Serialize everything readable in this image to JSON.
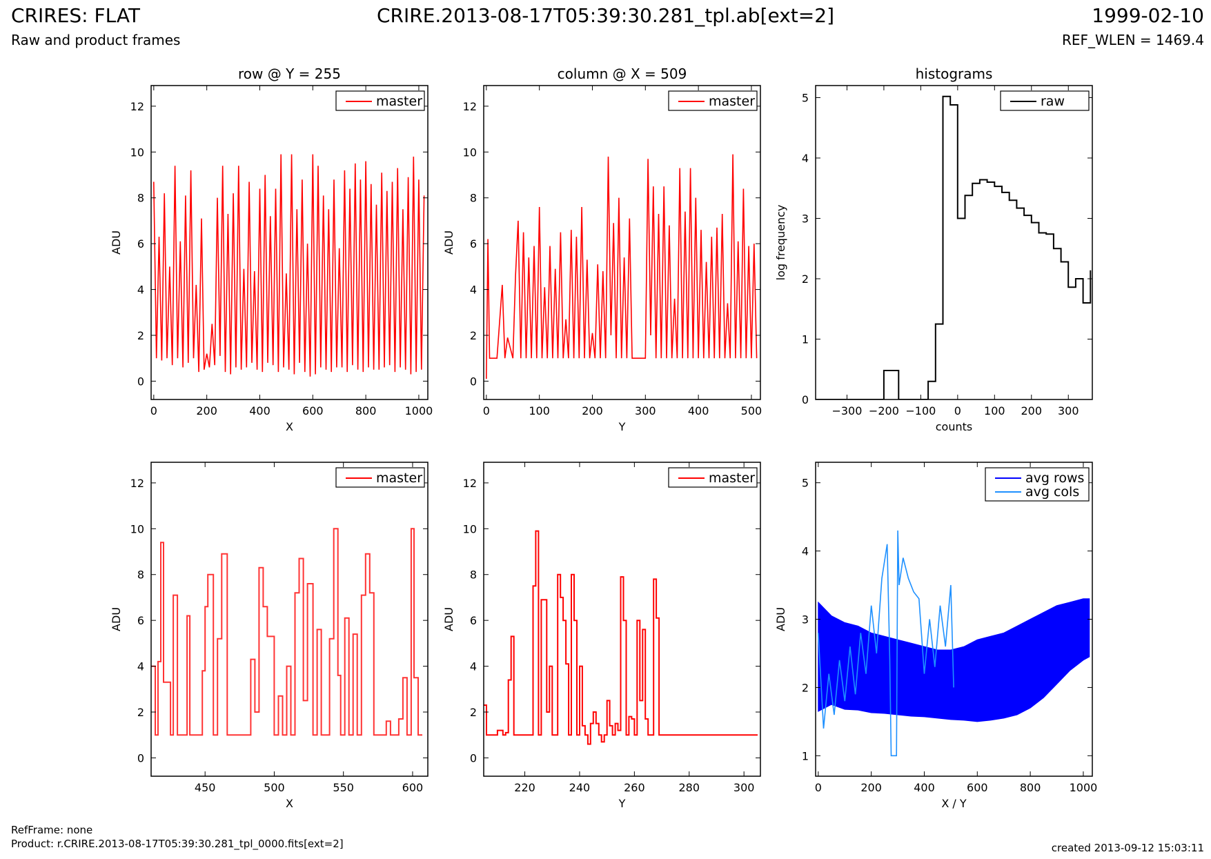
{
  "header": {
    "title": "CRIRES: FLAT",
    "subtitle": "Raw and product frames",
    "file": "CRIRE.2013-08-17T05:39:30.281_tpl.ab[ext=2]",
    "date": "1999-02-10",
    "ref_wlen": "REF_WLEN = 1469.4"
  },
  "footer": {
    "ref_frame": "RefFrame: none",
    "product": "Product: r.CRIRE.2013-08-17T05:39:30.281_tpl_0000.fits[ext=2]",
    "created": "created 2013-09-12 15:03:11"
  },
  "colors": {
    "master": "#ff0000",
    "master_zoom": "#ff3333",
    "raw": "#000000",
    "avg_rows": "#0000ff",
    "avg_cols": "#1e90ff"
  },
  "chart_data": [
    {
      "id": "row",
      "type": "line",
      "title": "row @ Y = 255",
      "xlabel": "X",
      "ylabel": "ADU",
      "xlim": [
        -10,
        1034
      ],
      "ylim": [
        -0.8,
        12.9
      ],
      "xticks": [
        0,
        200,
        400,
        600,
        800,
        1000
      ],
      "yticks": [
        0,
        2,
        4,
        6,
        8,
        10,
        12
      ],
      "legend": [
        "master"
      ],
      "legend_position": "top-right",
      "series": [
        {
          "name": "master",
          "style": "line",
          "x": [
            0,
            10,
            20,
            30,
            40,
            50,
            60,
            70,
            80,
            90,
            100,
            110,
            120,
            130,
            140,
            150,
            160,
            170,
            180,
            190,
            200,
            210,
            220,
            230,
            240,
            250,
            260,
            270,
            280,
            290,
            300,
            310,
            320,
            330,
            340,
            350,
            360,
            370,
            380,
            390,
            400,
            410,
            420,
            430,
            440,
            450,
            460,
            470,
            480,
            490,
            500,
            510,
            520,
            530,
            540,
            550,
            560,
            570,
            580,
            590,
            600,
            610,
            620,
            630,
            640,
            650,
            660,
            670,
            680,
            690,
            700,
            710,
            720,
            730,
            740,
            750,
            760,
            770,
            780,
            790,
            800,
            810,
            820,
            830,
            840,
            850,
            860,
            870,
            880,
            890,
            900,
            910,
            920,
            930,
            940,
            950,
            960,
            970,
            980,
            990,
            1000,
            1010,
            1020
          ],
          "values": [
            8.7,
            1,
            6.3,
            0.9,
            8.2,
            1,
            5,
            0.7,
            9.4,
            1,
            6.1,
            0.6,
            8.1,
            0.8,
            9.2,
            1,
            4.2,
            0.4,
            7.1,
            0.5,
            1.2,
            0.6,
            2.5,
            0.7,
            8.0,
            1.1,
            9.4,
            0.4,
            7.3,
            0.3,
            8.2,
            0.6,
            9.4,
            0.5,
            4.9,
            0.6,
            8.7,
            0.8,
            4.8,
            0.5,
            8.4,
            0.4,
            9.0,
            0.8,
            7.2,
            0.7,
            8.4,
            0.4,
            9.9,
            0.6,
            4.7,
            0.5,
            9.9,
            0.3,
            7.5,
            0.8,
            8.8,
            0.4,
            6.0,
            0.2,
            9.9,
            0.3,
            9.4,
            0.6,
            8.1,
            0.5,
            7.5,
            0.4,
            8.8,
            0.6,
            5.8,
            0.6,
            9.2,
            0.4,
            8.4,
            0.7,
            9.5,
            0.5,
            8.8,
            0.4,
            9.6,
            0.6,
            8.6,
            0.5,
            7.7,
            0.5,
            9.1,
            0.6,
            8.3,
            0.7,
            8.7,
            0.4,
            9.3,
            0.6,
            7.5,
            0.5,
            8.9,
            0.3,
            9.8,
            0.4,
            8.8,
            0.5,
            8.1
          ]
        }
      ]
    },
    {
      "id": "column",
      "type": "line",
      "title": "column @ X = 509",
      "xlabel": "Y",
      "ylabel": "ADU",
      "xlim": [
        -5,
        517
      ],
      "ylim": [
        -0.8,
        12.9
      ],
      "xticks": [
        0,
        100,
        200,
        300,
        400,
        500
      ],
      "yticks": [
        0,
        2,
        4,
        6,
        8,
        10,
        12
      ],
      "legend": [
        "master"
      ],
      "legend_position": "top-right",
      "series": [
        {
          "name": "master",
          "style": "line",
          "x": [
            0,
            3,
            6,
            10,
            20,
            30,
            35,
            40,
            50,
            55,
            60,
            65,
            70,
            75,
            80,
            85,
            90,
            95,
            100,
            105,
            110,
            115,
            120,
            125,
            130,
            135,
            140,
            145,
            150,
            155,
            160,
            165,
            170,
            175,
            180,
            185,
            190,
            195,
            200,
            205,
            210,
            215,
            220,
            225,
            230,
            235,
            240,
            245,
            250,
            255,
            260,
            265,
            270,
            275,
            280,
            290,
            300,
            305,
            310,
            315,
            320,
            325,
            330,
            335,
            340,
            345,
            350,
            355,
            360,
            365,
            370,
            375,
            380,
            385,
            390,
            395,
            400,
            405,
            410,
            415,
            420,
            425,
            430,
            435,
            440,
            445,
            450,
            455,
            460,
            465,
            470,
            475,
            480,
            485,
            490,
            495,
            500,
            505,
            510
          ],
          "values": [
            0.1,
            6.2,
            1,
            1,
            1,
            4.2,
            1,
            1.9,
            1,
            4.6,
            7,
            1,
            6.5,
            1,
            5.4,
            1,
            5.9,
            1,
            7.6,
            1,
            4.1,
            1,
            5.9,
            1,
            4.9,
            1,
            6.5,
            1,
            2.7,
            1,
            6.6,
            1,
            6.3,
            1,
            7.6,
            1,
            5.3,
            1,
            2.1,
            1,
            5.1,
            1,
            4.8,
            1,
            9.8,
            2,
            6.9,
            1,
            8.0,
            1,
            5.4,
            1,
            7.1,
            1,
            1,
            1,
            1,
            9.7,
            2,
            8.5,
            1,
            7.3,
            1,
            8.5,
            1,
            6.8,
            1,
            3.6,
            1,
            9.3,
            1,
            7.4,
            1,
            9.3,
            1,
            8.0,
            1,
            6.6,
            1,
            5.2,
            1,
            6.3,
            1,
            6.7,
            1,
            7.3,
            1,
            3.4,
            1,
            9.9,
            1,
            6.1,
            1,
            8.4,
            1,
            5.9,
            1,
            6.0,
            1
          ]
        }
      ]
    },
    {
      "id": "hist",
      "type": "line",
      "title": "histograms",
      "xlabel": "counts",
      "ylabel": "log frequency",
      "xlim": [
        -385,
        365
      ],
      "ylim": [
        0,
        5.2
      ],
      "xticks": [
        -300,
        -200,
        -100,
        0,
        100,
        200,
        300
      ],
      "yticks": [
        0,
        1,
        2,
        3,
        4,
        5
      ],
      "legend": [
        "raw"
      ],
      "legend_position": "top-right",
      "series": [
        {
          "name": "raw",
          "style": "step",
          "x": [
            -385,
            -200,
            -160,
            -100,
            -80,
            -60,
            -40,
            -20,
            0,
            20,
            40,
            60,
            80,
            100,
            120,
            140,
            160,
            180,
            200,
            220,
            240,
            260,
            280,
            300,
            320,
            340,
            360
          ],
          "values": [
            0,
            0.48,
            0,
            0,
            0.3,
            1.25,
            5.02,
            4.88,
            3.0,
            3.38,
            3.58,
            3.64,
            3.6,
            3.53,
            3.43,
            3.3,
            3.17,
            3.05,
            2.93,
            2.76,
            2.74,
            2.5,
            2.28,
            1.86,
            2.0,
            1.6,
            2.14
          ]
        }
      ]
    },
    {
      "id": "row-zoom",
      "type": "line",
      "title": "",
      "xlabel": "X",
      "ylabel": "ADU",
      "xlim": [
        411,
        611
      ],
      "ylim": [
        -0.8,
        12.9
      ],
      "xticks": [
        450,
        500,
        550,
        600
      ],
      "yticks": [
        0,
        2,
        4,
        6,
        8,
        10,
        12
      ],
      "legend": [
        "master"
      ],
      "legend_position": "top-right",
      "series": [
        {
          "name": "master",
          "style": "step",
          "x": [
            411,
            414,
            416,
            418,
            420,
            425,
            427,
            430,
            437,
            439,
            445,
            448,
            450,
            452,
            456,
            459,
            462,
            466,
            470,
            480,
            483,
            486,
            489,
            492,
            495,
            500,
            503,
            506,
            509,
            512,
            515,
            518,
            521,
            524,
            528,
            531,
            534,
            537,
            540,
            543,
            546,
            548,
            551,
            554,
            557,
            560,
            563,
            566,
            569,
            572,
            575,
            578,
            581,
            584,
            587,
            590,
            593,
            596,
            599,
            601,
            604,
            607
          ],
          "values": [
            4,
            1,
            4.2,
            9.4,
            3.3,
            1,
            7.1,
            1,
            6.2,
            1,
            1,
            3.8,
            6.6,
            8.0,
            1,
            5.2,
            8.9,
            1,
            1,
            1,
            4.3,
            2,
            8.3,
            6.6,
            5.3,
            1,
            2.7,
            1,
            4.0,
            1,
            7.2,
            8.7,
            2.5,
            7.6,
            1,
            5.6,
            1,
            1,
            5.2,
            10.0,
            3.6,
            1,
            6.1,
            1,
            5.4,
            1,
            7.1,
            8.9,
            7.2,
            1,
            1,
            1,
            1.6,
            1,
            1,
            1.7,
            3.5,
            1,
            10.0,
            3.5,
            1,
            1
          ]
        }
      ]
    },
    {
      "id": "column-zoom",
      "type": "line",
      "title": "",
      "xlabel": "Y",
      "ylabel": "ADU",
      "xlim": [
        205,
        306
      ],
      "ylim": [
        -0.8,
        12.9
      ],
      "xticks": [
        220,
        240,
        260,
        280,
        300
      ],
      "yticks": [
        0,
        2,
        4,
        6,
        8,
        10,
        12
      ],
      "legend": [
        "master"
      ],
      "legend_position": "top-right",
      "series": [
        {
          "name": "master",
          "style": "step",
          "x": [
            205,
            206,
            207,
            210,
            212,
            213,
            214,
            215,
            216,
            217,
            218,
            219,
            220,
            221,
            222,
            223,
            224,
            225,
            226,
            227,
            228,
            229,
            230,
            231,
            232,
            233,
            234,
            235,
            236,
            237,
            238,
            239,
            240,
            241,
            242,
            243,
            244,
            245,
            246,
            247,
            248,
            249,
            250,
            251,
            252,
            253,
            254,
            255,
            256,
            257,
            258,
            259,
            260,
            261,
            262,
            263,
            264,
            265,
            266,
            267,
            268,
            269,
            270,
            271,
            272,
            305
          ],
          "values": [
            2.3,
            1,
            1,
            1.2,
            1,
            1.1,
            3.4,
            5.3,
            1,
            1,
            1,
            1,
            1,
            1,
            1,
            7.5,
            9.9,
            1,
            6.9,
            6.9,
            2,
            4.0,
            1,
            1,
            8.0,
            7.0,
            6.0,
            4.1,
            1,
            8.0,
            6.0,
            1,
            4.0,
            1.4,
            1,
            0.6,
            1.5,
            2.0,
            1.5,
            1,
            0.7,
            1.0,
            2.5,
            1.4,
            1.0,
            1.5,
            1.2,
            7.9,
            6.0,
            1.0,
            1.8,
            1.7,
            1.0,
            6.0,
            2.5,
            5.6,
            1.7,
            1.0,
            1.0,
            7.8,
            6.1,
            1,
            1,
            1,
            1,
            1
          ]
        }
      ]
    },
    {
      "id": "avg",
      "type": "line",
      "title": "",
      "xlabel": "X / Y",
      "ylabel": "ADU",
      "xlim": [
        -10,
        1034
      ],
      "ylim": [
        0.7,
        5.3
      ],
      "xticks": [
        0,
        200,
        400,
        600,
        800,
        1000
      ],
      "yticks": [
        1,
        2,
        3,
        4,
        5
      ],
      "legend": [
        "avg rows",
        "avg cols"
      ],
      "legend_position": "top-right",
      "series": [
        {
          "name": "avg rows",
          "style": "band",
          "x": [
            0,
            50,
            100,
            150,
            200,
            250,
            300,
            350,
            400,
            450,
            500,
            550,
            600,
            650,
            700,
            750,
            800,
            850,
            900,
            950,
            1000,
            1023
          ],
          "lower": [
            1.65,
            1.75,
            1.68,
            1.67,
            1.63,
            1.62,
            1.6,
            1.58,
            1.57,
            1.55,
            1.53,
            1.52,
            1.5,
            1.52,
            1.55,
            1.6,
            1.7,
            1.85,
            2.05,
            2.25,
            2.4,
            2.45
          ],
          "upper": [
            3.25,
            3.05,
            2.95,
            2.9,
            2.8,
            2.75,
            2.7,
            2.65,
            2.6,
            2.55,
            2.55,
            2.6,
            2.7,
            2.75,
            2.8,
            2.9,
            3.0,
            3.1,
            3.2,
            3.25,
            3.3,
            3.3
          ]
        },
        {
          "name": "avg cols",
          "style": "line",
          "x": [
            0,
            20,
            40,
            60,
            80,
            100,
            120,
            140,
            160,
            180,
            200,
            220,
            240,
            260,
            270,
            275,
            285,
            295,
            300,
            305,
            320,
            340,
            360,
            380,
            400,
            420,
            440,
            460,
            480,
            500,
            511
          ],
          "values": [
            2.8,
            1.4,
            2.2,
            1.6,
            2.4,
            1.8,
            2.6,
            1.9,
            2.8,
            2.2,
            3.2,
            2.5,
            3.6,
            4.1,
            2.4,
            1.0,
            1.0,
            1.0,
            4.3,
            3.5,
            3.9,
            3.6,
            3.4,
            3.3,
            2.2,
            3.0,
            2.3,
            3.2,
            2.6,
            3.5,
            2.0
          ]
        }
      ]
    }
  ]
}
